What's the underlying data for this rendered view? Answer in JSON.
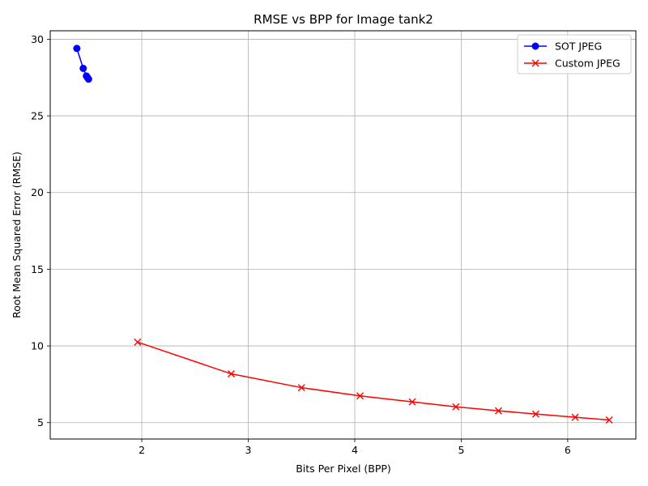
{
  "chart_data": {
    "type": "line",
    "title": "RMSE vs BPP for Image tank2",
    "xlabel": "Bits Per Pixel (BPP)",
    "ylabel": "Root Mean Squared Error (RMSE)",
    "xlim": [
      1.14,
      6.64
    ],
    "ylim": [
      3.93,
      30.55
    ],
    "xticks": [
      2,
      3,
      4,
      5,
      6
    ],
    "yticks": [
      5,
      10,
      15,
      20,
      25,
      30
    ],
    "grid": true,
    "legend_position": "top-right",
    "series": [
      {
        "name": "SOT JPEG",
        "color": "#0000ff",
        "marker": "circle",
        "x": [
          1.39,
          1.45,
          1.48,
          1.49,
          1.5
        ],
        "y": [
          29.4,
          28.1,
          27.6,
          27.5,
          27.4
        ]
      },
      {
        "name": "Custom JPEG",
        "color": "#ff0000",
        "marker": "x",
        "x": [
          1.96,
          2.84,
          3.5,
          4.05,
          4.54,
          4.95,
          5.35,
          5.7,
          6.07,
          6.39
        ],
        "y": [
          10.25,
          8.18,
          7.28,
          6.74,
          6.35,
          6.03,
          5.77,
          5.56,
          5.35,
          5.17
        ]
      }
    ]
  }
}
